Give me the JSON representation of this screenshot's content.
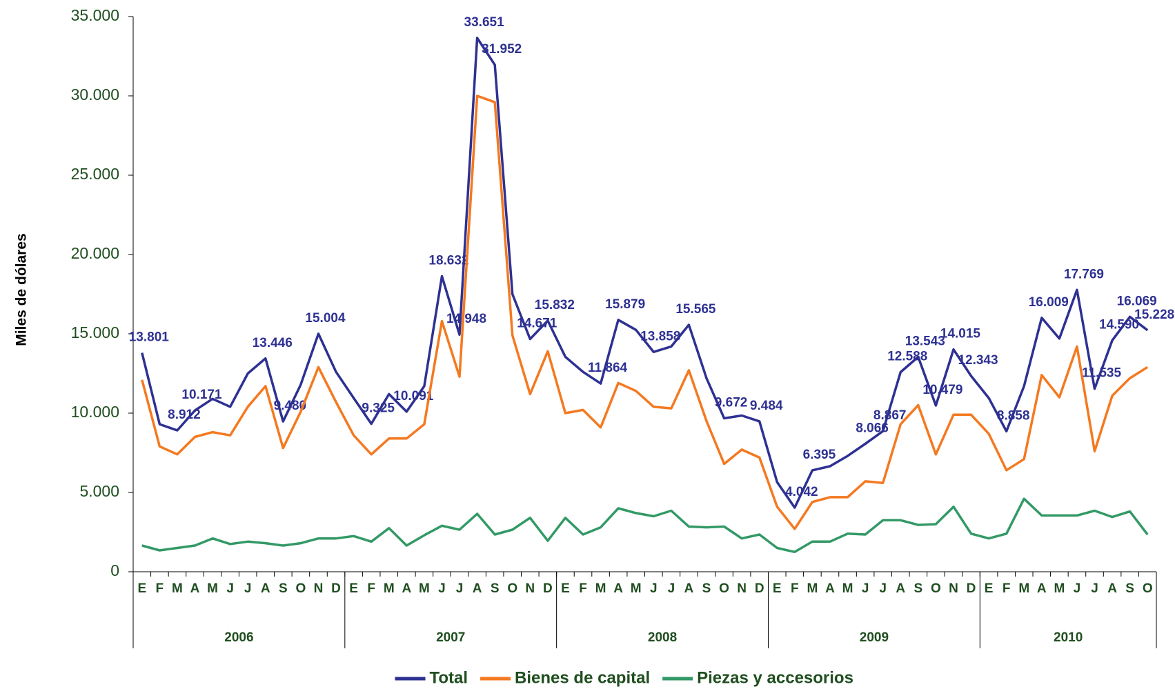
{
  "chart_data": {
    "type": "line",
    "y_axis_label": "Miles de dólares",
    "category_groups": [
      {
        "name": "2006",
        "categories": [
          "E",
          "F",
          "M",
          "A",
          "M",
          "J",
          "J",
          "A",
          "S",
          "O",
          "N",
          "D"
        ]
      },
      {
        "name": "2007",
        "categories": [
          "E",
          "F",
          "M",
          "A",
          "M",
          "J",
          "J",
          "A",
          "S",
          "O",
          "N",
          "D"
        ]
      },
      {
        "name": "2008",
        "categories": [
          "E",
          "F",
          "M",
          "A",
          "M",
          "J",
          "J",
          "A",
          "S",
          "O",
          "N",
          "D"
        ]
      },
      {
        "name": "2009",
        "categories": [
          "E",
          "F",
          "M",
          "A",
          "M",
          "J",
          "J",
          "A",
          "S",
          "O",
          "N",
          "D"
        ]
      },
      {
        "name": "2010",
        "categories": [
          "E",
          "F",
          "M",
          "A",
          "M",
          "J",
          "J",
          "A",
          "S",
          "O"
        ]
      }
    ],
    "ylim": [
      0,
      35000
    ],
    "yticks": [
      0,
      {
        "value": 5000,
        "label": "5.000"
      },
      {
        "value": 10000,
        "label": "10.000"
      },
      {
        "value": 15000,
        "label": "15.000"
      },
      {
        "value": 20000,
        "label": "20.000"
      },
      {
        "value": 25000,
        "label": "25.000"
      },
      {
        "value": 30000,
        "label": "30.000"
      },
      {
        "value": 35000,
        "label": "35.000"
      }
    ],
    "grid": false,
    "legend": "bottom",
    "series": [
      {
        "name": "Total",
        "color": "#2e3192",
        "values": [
          13801,
          9300,
          8912,
          10171,
          10900,
          10400,
          12500,
          13446,
          9480,
          11800,
          15004,
          12600,
          10950,
          9325,
          11200,
          10091,
          11700,
          18632,
          14948,
          33651,
          31952,
          17500,
          14671,
          15832,
          13550,
          12600,
          11864,
          15879,
          15250,
          13858,
          14200,
          15565,
          12200,
          9672,
          9850,
          9484,
          5650,
          4042,
          6395,
          6650,
          7300,
          8066,
          8867,
          12588,
          13543,
          10479,
          14015,
          12343,
          10950,
          8858,
          11700,
          16009,
          14700,
          17769,
          11535,
          14590,
          16069,
          15228
        ],
        "value_labels": [
          "13.801",
          null,
          "8.912",
          "10.171",
          null,
          null,
          null,
          "13.446",
          "9.480",
          null,
          "15.004",
          null,
          null,
          "9.325",
          null,
          "10.091",
          null,
          "18.632",
          "14.948",
          "33.651",
          "31.952",
          null,
          "14.671",
          "15.832",
          null,
          null,
          "11.864",
          "15.879",
          null,
          "13.858",
          null,
          "15.565",
          null,
          "9.672",
          null,
          "9.484",
          null,
          "4.042",
          "6.395",
          null,
          null,
          "8.066",
          "8.867",
          "12.588",
          "13.543",
          "10.479",
          "14.015",
          "12.343",
          null,
          "8.858",
          null,
          "16.009",
          null,
          "17.769",
          "11.535",
          "14.590",
          "16.069",
          "15.228"
        ]
      },
      {
        "name": "Bienes de capital",
        "color": "#f47920",
        "values": [
          12100,
          7900,
          7400,
          8500,
          8800,
          8600,
          10400,
          11700,
          7800,
          10100,
          12900,
          10700,
          8600,
          7400,
          8400,
          8400,
          9300,
          15800,
          12300,
          30000,
          29600,
          14900,
          11200,
          13900,
          10000,
          10200,
          9100,
          11900,
          11400,
          10400,
          10300,
          12700,
          9500,
          6800,
          7700,
          7200,
          4100,
          2700,
          4400,
          4700,
          4700,
          5700,
          5600,
          9300,
          10500,
          7400,
          9900,
          9900,
          8700,
          6400,
          7100,
          12400,
          11000,
          14200,
          7600,
          11100,
          12200,
          12900
        ]
      },
      {
        "name": "Piezas y accesorios",
        "color": "#339966",
        "values": [
          1650,
          1350,
          1500,
          1650,
          2100,
          1750,
          1900,
          1800,
          1650,
          1800,
          2100,
          2100,
          2250,
          1900,
          2750,
          1650,
          2300,
          2900,
          2650,
          3650,
          2350,
          2650,
          3400,
          1950,
          3400,
          2350,
          2800,
          4000,
          3700,
          3500,
          3850,
          2850,
          2800,
          2850,
          2100,
          2350,
          1500,
          1250,
          1900,
          1900,
          2400,
          2350,
          3250,
          3250,
          2950,
          3000,
          4100,
          2400,
          2100,
          2400,
          4600,
          3550,
          3550,
          3550,
          3850,
          3450,
          3800,
          2350
        ]
      }
    ]
  }
}
